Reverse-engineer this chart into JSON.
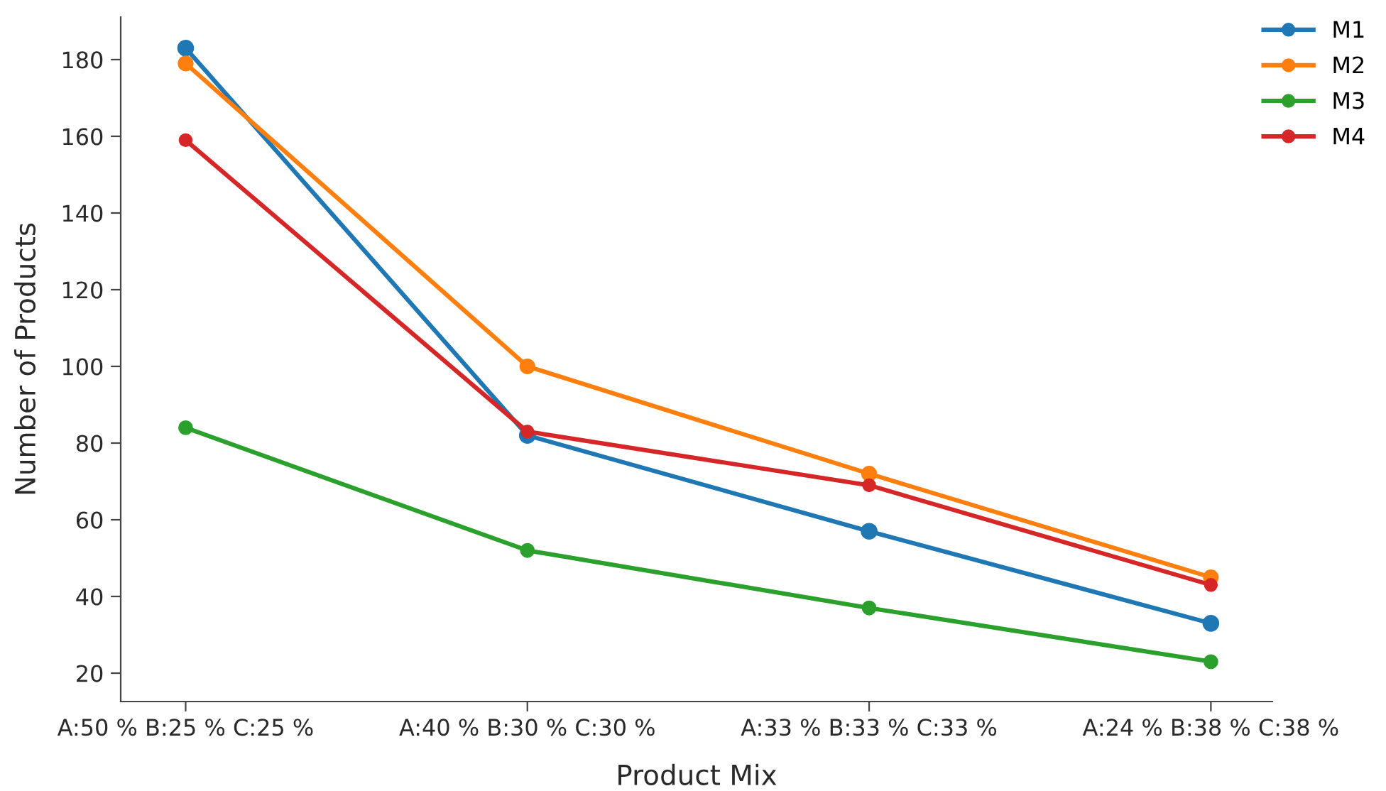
{
  "chart_data": {
    "type": "line",
    "xlabel": "Product Mix",
    "ylabel": "Number of Products",
    "categories": [
      "A:50 % B:25 % C:25 %",
      "A:40 % B:30 % C:30 %",
      "A:33 % B:33 % C:33 %",
      "A:24 % B:38 % C:38 %"
    ],
    "series": [
      {
        "name": "M1",
        "color": "#1f77b4",
        "values": [
          183,
          82,
          57,
          33
        ]
      },
      {
        "name": "M2",
        "color": "#ff7f0e",
        "values": [
          179,
          100,
          72,
          45
        ]
      },
      {
        "name": "M3",
        "color": "#2ca02c",
        "values": [
          84,
          52,
          37,
          23
        ]
      },
      {
        "name": "M4",
        "color": "#d62728",
        "values": [
          159,
          83,
          69,
          43
        ]
      }
    ],
    "ylim": [
      12.6,
      191.1
    ],
    "yticks": [
      20,
      40,
      60,
      80,
      100,
      120,
      140,
      160,
      180
    ],
    "grid": false,
    "legend": "top right",
    "marker": "circle",
    "line_style": "solid"
  }
}
